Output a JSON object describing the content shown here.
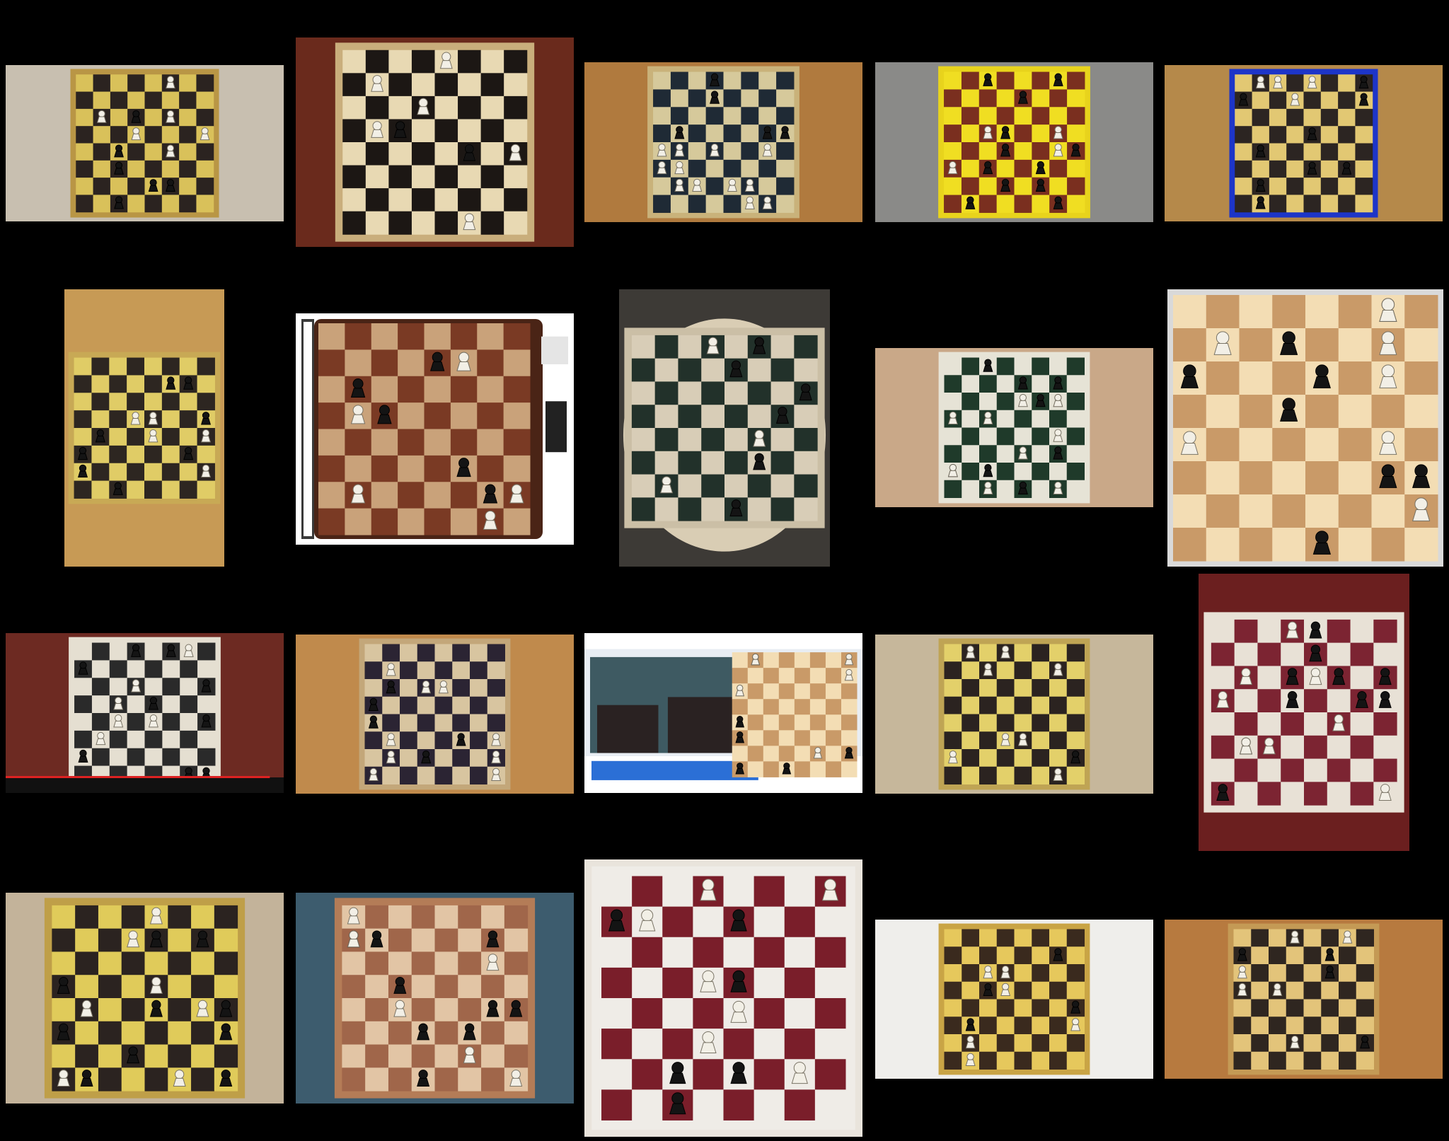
{
  "grid": {
    "background": "#000000",
    "tiles": [
      {
        "style": "photo-yellow",
        "table": "#c8bfb0",
        "light": "#d9c15a",
        "dark": "#2b2320",
        "frame": "#b99645"
      },
      {
        "style": "wood-numbered",
        "table": "#6a2a1c",
        "light": "#e8d9b3",
        "dark": "#1c1714",
        "frame": "#c9ae7c"
      },
      {
        "style": "photo-slate",
        "table": "#b07a3e",
        "light": "#d6c99b",
        "dark": "#1f2a35",
        "frame": "#c9b27a"
      },
      {
        "style": "yellow-brown",
        "table": "#8a8a88",
        "light": "#f0de22",
        "dark": "#7a2f1f",
        "frame": "#e8d31c"
      },
      {
        "style": "blue-frame",
        "table": "#b5894a",
        "light": "#e2c873",
        "dark": "#2c2522",
        "frame": "#1d35c8"
      },
      {
        "style": "photo-portrait",
        "table": "#c79a55",
        "light": "#e0cc66",
        "dark": "#2d2621",
        "frame": "#c8a955"
      },
      {
        "style": "digital-wood",
        "table": "#ffffff",
        "light": "#c9a27a",
        "dark": "#7a3a24",
        "frame": "#4a2416"
      },
      {
        "style": "round-table",
        "table": "#3d3a36",
        "light": "#d8cdb7",
        "dark": "#22312a",
        "frame": "#cbbfa6"
      },
      {
        "style": "green-vinyl",
        "table": "#c9a888",
        "light": "#e6e3d6",
        "dark": "#1f3a2a",
        "frame": "#e6e3d6"
      },
      {
        "style": "digital-diagram",
        "table": "#d9d9d9",
        "light": "#f3ddb4",
        "dark": "#c99a68",
        "frame": "#bcbcbc"
      },
      {
        "style": "video-frame",
        "table": "#6d2a22",
        "light": "#e5dfd1",
        "dark": "#2a2a2a",
        "frame": "#e5dfd1"
      },
      {
        "style": "photo-slate2",
        "table": "#c08a4c",
        "light": "#d8c5a0",
        "dark": "#2b2433",
        "frame": "#c3a77a"
      },
      {
        "style": "broadcast",
        "table": "#e8edf3",
        "light": "#f3ddb4",
        "dark": "#c99a68",
        "frame": "#2b6fd6"
      },
      {
        "style": "photo-yellow2",
        "table": "#c6b79b",
        "light": "#e3d06a",
        "dark": "#2b2320",
        "frame": "#bfa454"
      },
      {
        "style": "burgundy-portrait",
        "table": "#6b1f1f",
        "light": "#e8e1d6",
        "dark": "#7c2432",
        "frame": "#e8e1d6"
      },
      {
        "style": "photo-yellow3",
        "table": "#c3b39a",
        "light": "#e0cb5a",
        "dark": "#2b2320",
        "frame": "#bf9f48"
      },
      {
        "style": "wood-light",
        "table": "#3d5c6e",
        "light": "#e2c5a5",
        "dark": "#a0664a",
        "frame": "#b47c57"
      },
      {
        "style": "burgundy-close",
        "table": "#e9e4dc",
        "light": "#efece7",
        "dark": "#7a1e2a",
        "frame": "#efece7"
      },
      {
        "style": "white-cloth",
        "table": "#efeeeb",
        "light": "#e6c85c",
        "dark": "#3a2a1e",
        "frame": "#c9a445"
      },
      {
        "style": "photo-wood",
        "table": "#b77a3f",
        "light": "#e3c47a",
        "dark": "#2f2620",
        "frame": "#c49a55"
      }
    ]
  }
}
